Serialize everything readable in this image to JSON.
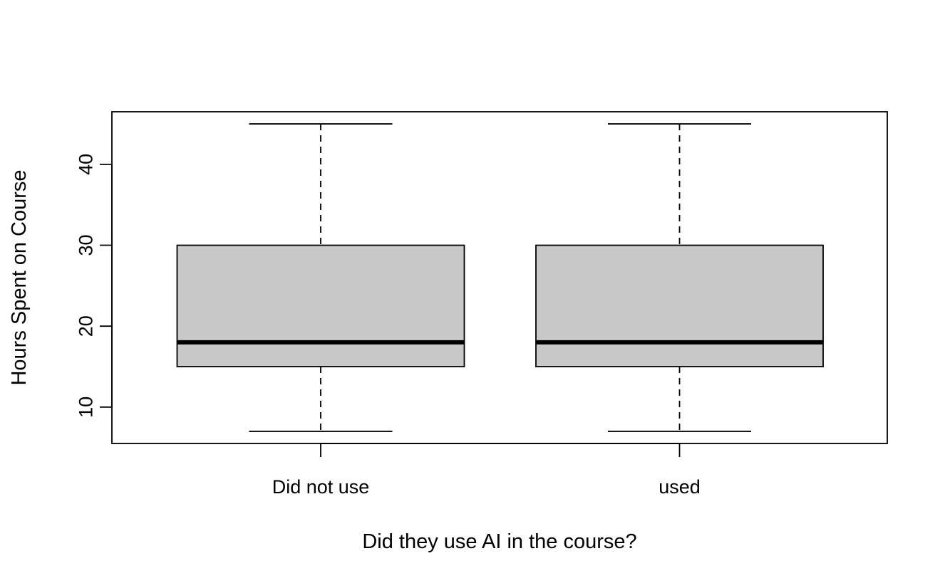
{
  "chart_data": {
    "type": "box",
    "title": "",
    "xlabel": "Did they use AI in the course?",
    "ylabel": "Hours Spent on Course",
    "ylim": [
      5.5,
      46.5
    ],
    "yticks": [
      10,
      20,
      30,
      40
    ],
    "grid": false,
    "categories": [
      "Did not use",
      "used"
    ],
    "boxes": [
      {
        "category": "Did not use",
        "min": 7,
        "q1": 15,
        "median": 18,
        "q3": 30,
        "max": 45
      },
      {
        "category": "used",
        "min": 7,
        "q1": 15,
        "median": 18,
        "q3": 30,
        "max": 45
      }
    ],
    "colors": {
      "box_fill": "#c8c8c8",
      "stroke": "#000000"
    }
  }
}
